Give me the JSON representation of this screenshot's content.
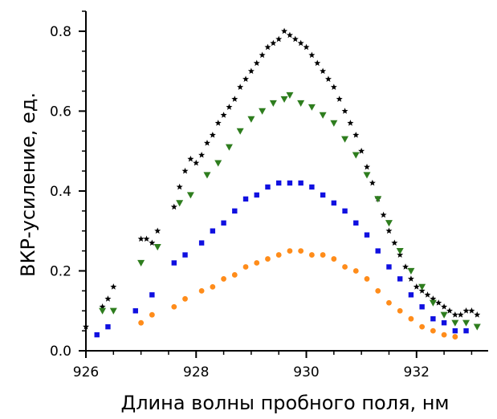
{
  "chart_data": {
    "type": "scatter",
    "xlabel": "Длина волны пробного поля, нм",
    "ylabel": "ВКР-усиление, ед.",
    "xlim": [
      926,
      933.3
    ],
    "ylim": [
      0,
      0.85
    ],
    "xticks": [
      "926",
      "928",
      "930",
      "932"
    ],
    "yticks": [
      "0.0",
      "0.2",
      "0.4",
      "0.6",
      "0.8"
    ],
    "x_minor_step": 0.5,
    "y_minor_step": 0.05,
    "grid": false,
    "legend": false,
    "series": [
      {
        "marker": "star",
        "color": "#000000",
        "points": [
          [
            926,
            0.06
          ],
          [
            926.3,
            0.11
          ],
          [
            926.4,
            0.13
          ],
          [
            926.5,
            0.16
          ],
          [
            927,
            0.28
          ],
          [
            927.1,
            0.28
          ],
          [
            927.2,
            0.27
          ],
          [
            927.3,
            0.3
          ],
          [
            927.6,
            0.36
          ],
          [
            927.7,
            0.41
          ],
          [
            927.8,
            0.45
          ],
          [
            927.9,
            0.48
          ],
          [
            928,
            0.47
          ],
          [
            928.1,
            0.49
          ],
          [
            928.2,
            0.52
          ],
          [
            928.3,
            0.54
          ],
          [
            928.4,
            0.57
          ],
          [
            928.5,
            0.59
          ],
          [
            928.6,
            0.61
          ],
          [
            928.7,
            0.63
          ],
          [
            928.8,
            0.66
          ],
          [
            928.9,
            0.68
          ],
          [
            929,
            0.7
          ],
          [
            929.1,
            0.72
          ],
          [
            929.2,
            0.74
          ],
          [
            929.3,
            0.76
          ],
          [
            929.4,
            0.77
          ],
          [
            929.5,
            0.78
          ],
          [
            929.6,
            0.8
          ],
          [
            929.7,
            0.79
          ],
          [
            929.8,
            0.78
          ],
          [
            929.9,
            0.77
          ],
          [
            930,
            0.76
          ],
          [
            930.1,
            0.74
          ],
          [
            930.2,
            0.72
          ],
          [
            930.3,
            0.7
          ],
          [
            930.4,
            0.68
          ],
          [
            930.5,
            0.66
          ],
          [
            930.6,
            0.63
          ],
          [
            930.7,
            0.6
          ],
          [
            930.8,
            0.57
          ],
          [
            930.9,
            0.54
          ],
          [
            931,
            0.5
          ],
          [
            931.1,
            0.46
          ],
          [
            931.2,
            0.42
          ],
          [
            931.3,
            0.38
          ],
          [
            931.4,
            0.34
          ],
          [
            931.5,
            0.3
          ],
          [
            931.6,
            0.27
          ],
          [
            931.7,
            0.24
          ],
          [
            931.8,
            0.21
          ],
          [
            931.9,
            0.18
          ],
          [
            932,
            0.16
          ],
          [
            932.1,
            0.15
          ],
          [
            932.2,
            0.14
          ],
          [
            932.3,
            0.13
          ],
          [
            932.4,
            0.12
          ],
          [
            932.5,
            0.11
          ],
          [
            932.6,
            0.1
          ],
          [
            932.7,
            0.09
          ],
          [
            932.8,
            0.09
          ],
          [
            932.9,
            0.1
          ],
          [
            933,
            0.1
          ],
          [
            933.1,
            0.09
          ]
        ]
      },
      {
        "marker": "triangle-down",
        "color": "#2e7d1e",
        "points": [
          [
            926.3,
            0.1
          ],
          [
            926.5,
            0.1
          ],
          [
            927,
            0.22
          ],
          [
            927.3,
            0.26
          ],
          [
            927.7,
            0.37
          ],
          [
            927.9,
            0.39
          ],
          [
            928.2,
            0.44
          ],
          [
            928.4,
            0.47
          ],
          [
            928.6,
            0.51
          ],
          [
            928.8,
            0.55
          ],
          [
            929,
            0.58
          ],
          [
            929.2,
            0.6
          ],
          [
            929.4,
            0.62
          ],
          [
            929.6,
            0.63
          ],
          [
            929.7,
            0.64
          ],
          [
            929.9,
            0.62
          ],
          [
            930.1,
            0.61
          ],
          [
            930.3,
            0.59
          ],
          [
            930.5,
            0.57
          ],
          [
            930.7,
            0.53
          ],
          [
            930.9,
            0.49
          ],
          [
            931.1,
            0.44
          ],
          [
            931.3,
            0.38
          ],
          [
            931.5,
            0.32
          ],
          [
            931.7,
            0.25
          ],
          [
            931.9,
            0.2
          ],
          [
            932.1,
            0.16
          ],
          [
            932.3,
            0.12
          ],
          [
            932.5,
            0.09
          ],
          [
            932.7,
            0.07
          ],
          [
            932.9,
            0.07
          ],
          [
            933.1,
            0.06
          ]
        ]
      },
      {
        "marker": "square",
        "color": "#1010e0",
        "points": [
          [
            926.2,
            0.04
          ],
          [
            926.4,
            0.06
          ],
          [
            926.9,
            0.1
          ],
          [
            927.2,
            0.14
          ],
          [
            927.6,
            0.22
          ],
          [
            927.8,
            0.24
          ],
          [
            928.1,
            0.27
          ],
          [
            928.3,
            0.3
          ],
          [
            928.5,
            0.32
          ],
          [
            928.7,
            0.35
          ],
          [
            928.9,
            0.38
          ],
          [
            929.1,
            0.39
          ],
          [
            929.3,
            0.41
          ],
          [
            929.5,
            0.42
          ],
          [
            929.7,
            0.42
          ],
          [
            929.9,
            0.42
          ],
          [
            930.1,
            0.41
          ],
          [
            930.3,
            0.39
          ],
          [
            930.5,
            0.37
          ],
          [
            930.7,
            0.35
          ],
          [
            930.9,
            0.32
          ],
          [
            931.1,
            0.29
          ],
          [
            931.3,
            0.25
          ],
          [
            931.5,
            0.21
          ],
          [
            931.7,
            0.18
          ],
          [
            931.9,
            0.14
          ],
          [
            932.1,
            0.11
          ],
          [
            932.3,
            0.08
          ],
          [
            932.5,
            0.07
          ],
          [
            932.7,
            0.05
          ],
          [
            932.9,
            0.05
          ]
        ]
      },
      {
        "marker": "circle",
        "color": "#ff8c1a",
        "points": [
          [
            927,
            0.07
          ],
          [
            927.2,
            0.09
          ],
          [
            927.6,
            0.11
          ],
          [
            927.8,
            0.13
          ],
          [
            928.1,
            0.15
          ],
          [
            928.3,
            0.16
          ],
          [
            928.5,
            0.18
          ],
          [
            928.7,
            0.19
          ],
          [
            928.9,
            0.21
          ],
          [
            929.1,
            0.22
          ],
          [
            929.3,
            0.23
          ],
          [
            929.5,
            0.24
          ],
          [
            929.7,
            0.25
          ],
          [
            929.9,
            0.25
          ],
          [
            930.1,
            0.24
          ],
          [
            930.3,
            0.24
          ],
          [
            930.5,
            0.23
          ],
          [
            930.7,
            0.21
          ],
          [
            930.9,
            0.2
          ],
          [
            931.1,
            0.18
          ],
          [
            931.3,
            0.15
          ],
          [
            931.5,
            0.12
          ],
          [
            931.7,
            0.1
          ],
          [
            931.9,
            0.08
          ],
          [
            932.1,
            0.06
          ],
          [
            932.3,
            0.05
          ],
          [
            932.5,
            0.04
          ],
          [
            932.7,
            0.035
          ]
        ]
      }
    ]
  }
}
